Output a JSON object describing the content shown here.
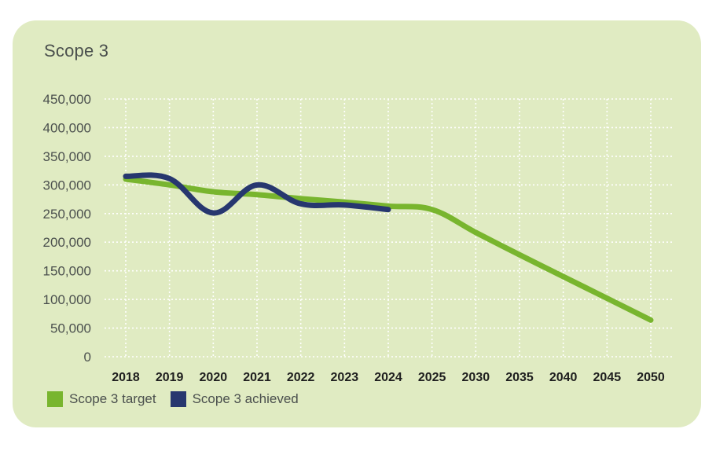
{
  "colors": {
    "background": "#e0ebc2",
    "target": "#78b52e",
    "achieved": "#27376f",
    "grid": "#ffffff"
  },
  "chart_data": {
    "type": "line",
    "title": "Scope 3",
    "categories": [
      "2018",
      "2019",
      "2020",
      "2021",
      "2022",
      "2023",
      "2024",
      "2025",
      "2030",
      "2035",
      "2040",
      "2045",
      "2050"
    ],
    "y_ticks": [
      "450,000",
      "400,000",
      "350,000",
      "300,000",
      "250,000",
      "200,000",
      "150,000",
      "100,000",
      "50,000",
      "0"
    ],
    "ylim": [
      0,
      450000
    ],
    "grid": true,
    "legend_position": "bottom-left",
    "series": [
      {
        "name": "Scope 3 target",
        "color": "#78b52e",
        "values": [
          310000,
          300000,
          288000,
          283000,
          276000,
          270000,
          263000,
          257000,
          217000,
          178000,
          140000,
          102000,
          64000
        ]
      },
      {
        "name": "Scope 3 achieved",
        "color": "#27376f",
        "values": [
          315000,
          311000,
          251000,
          300000,
          267000,
          265000,
          257000,
          null,
          null,
          null,
          null,
          null,
          null
        ]
      }
    ]
  }
}
